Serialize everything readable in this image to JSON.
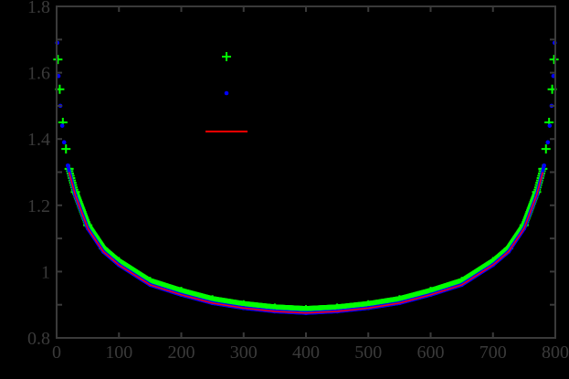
{
  "chart_data": {
    "type": "scatter",
    "title": "",
    "xlabel": "",
    "ylabel": "",
    "xlim": [
      0,
      800
    ],
    "ylim": [
      0.8,
      1.8
    ],
    "grid": false,
    "background": "#000000",
    "axis_color": "#3a3a3a",
    "x_ticks": [
      0,
      100,
      200,
      300,
      400,
      500,
      600,
      700,
      800
    ],
    "x_tick_labels": [
      "0",
      "100",
      "200",
      "300",
      "400",
      "500",
      "600",
      "700",
      "800"
    ],
    "y_ticks": [
      0.8,
      1.0,
      1.2,
      1.4,
      1.6,
      1.8
    ],
    "y_tick_labels": [
      "0.8",
      "1",
      "1.2",
      "1.4",
      "1.6",
      "1.8"
    ],
    "legend": {
      "position": "upper-left-center",
      "entries": [
        {
          "label": "",
          "marker": "+",
          "color": "#00ff00"
        },
        {
          "label": "",
          "marker": ".",
          "color": "#0000ff"
        },
        {
          "label": "",
          "marker": "line",
          "color": "#ff0000"
        }
      ]
    },
    "series": [
      {
        "name": "green-plus",
        "marker": "+",
        "color": "#00ff00",
        "x": [
          2,
          5,
          10,
          15,
          20,
          30,
          50,
          75,
          100,
          150,
          200,
          250,
          300,
          350,
          400,
          450,
          500,
          550,
          600,
          650,
          700,
          725,
          750,
          770,
          780,
          785,
          790,
          795,
          798
        ],
        "y": [
          1.64,
          1.55,
          1.45,
          1.37,
          1.31,
          1.24,
          1.14,
          1.07,
          1.03,
          0.97,
          0.94,
          0.915,
          0.9,
          0.89,
          0.885,
          0.89,
          0.9,
          0.915,
          0.94,
          0.97,
          1.03,
          1.07,
          1.14,
          1.24,
          1.31,
          1.37,
          1.45,
          1.55,
          1.64
        ]
      },
      {
        "name": "blue-dot",
        "marker": ".",
        "color": "#0000ff",
        "x": [
          1,
          3,
          6,
          9,
          12,
          18,
          30,
          50,
          75,
          100,
          150,
          200,
          250,
          300,
          350,
          400,
          450,
          500,
          550,
          600,
          650,
          700,
          725,
          750,
          770,
          782,
          788,
          791,
          794,
          797,
          799
        ],
        "y": [
          1.69,
          1.59,
          1.5,
          1.44,
          1.39,
          1.32,
          1.23,
          1.13,
          1.06,
          1.02,
          0.96,
          0.93,
          0.905,
          0.89,
          0.88,
          0.875,
          0.88,
          0.89,
          0.905,
          0.93,
          0.96,
          1.02,
          1.06,
          1.13,
          1.23,
          1.32,
          1.39,
          1.44,
          1.5,
          1.59,
          1.69
        ]
      },
      {
        "name": "red-line",
        "marker": "line",
        "color": "#ff0000",
        "x": [
          20,
          30,
          50,
          75,
          100,
          150,
          200,
          250,
          300,
          350,
          400,
          450,
          500,
          550,
          600,
          650,
          700,
          725,
          750,
          770,
          780
        ],
        "y": [
          1.3,
          1.23,
          1.13,
          1.06,
          1.02,
          0.96,
          0.93,
          0.905,
          0.89,
          0.88,
          0.875,
          0.88,
          0.89,
          0.905,
          0.93,
          0.96,
          1.02,
          1.06,
          1.13,
          1.23,
          1.3
        ]
      }
    ]
  }
}
